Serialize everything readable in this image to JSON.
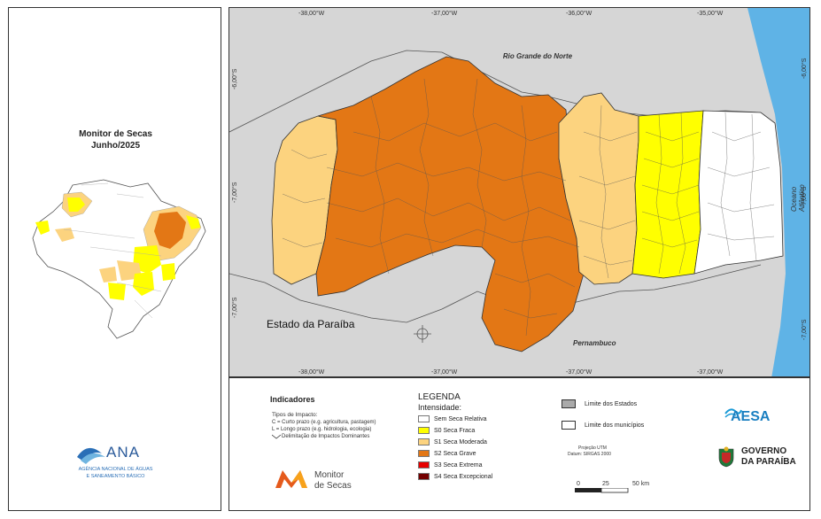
{
  "inset": {
    "title": "Monitor de Secas",
    "subtitle": "Junho/2025"
  },
  "ana": {
    "name": "ANA",
    "line1": "AGÊNCIA NACIONAL DE ÁGUAS",
    "line2": "E SANEAMENTO BÁSICO"
  },
  "map": {
    "state_name": "Estado da Paraíba",
    "neighbors": {
      "north": "Rio Grande do Norte",
      "south": "Pernambuco",
      "ocean": "Oceano Atlântico"
    },
    "top_coords": [
      "-38,00°W",
      "-37,00°W",
      "-36,00°W",
      "-35,00°W"
    ],
    "bottom_coords": [
      "-38,00°W",
      "-37,00°W",
      "-37,00°W",
      "-37,00°W"
    ],
    "left_coords": [
      "-6,00°S",
      "-7,00°S",
      "-7,00°S"
    ],
    "right_coords": [
      "-6,00°S",
      "-7,00°S",
      "-7,00°S"
    ]
  },
  "indicators": {
    "title": "Indicadores",
    "impact_title": "Tipos de Impacto:",
    "short": "C = Curto prazo (e.g. agricultura, pastagem)",
    "long": "L = Longo prazo (e.g. hidrologia, ecologia)",
    "delim": "Delimitação de Impactos Dominantes"
  },
  "legend": {
    "title": "LEGENDA",
    "subtitle": "Intensidade:",
    "items": [
      {
        "label": "Sem Seca Relativa",
        "color": "#ffffff"
      },
      {
        "label": "S0 Seca Fraca",
        "color": "#ffff00"
      },
      {
        "label": "S1 Seca Moderada",
        "color": "#fcd37f"
      },
      {
        "label": "S2 Seca Grave",
        "color": "#e37715"
      },
      {
        "label": "S3 Seca Extrema",
        "color": "#e60000"
      },
      {
        "label": "S4 Seca Excepcional",
        "color": "#730000"
      }
    ]
  },
  "limits": {
    "states": "Limite dos Estados",
    "municipalities": "Limite dos municípios"
  },
  "projection": {
    "line1": "Projeção UTM",
    "line2": "Datum: SIRGAS 2000"
  },
  "scale": {
    "labels": [
      "0",
      "25",
      "50 km"
    ]
  },
  "monitor_logo": {
    "line1": "Monitor",
    "line2": "de Secas"
  },
  "aesa": {
    "name": "AESA"
  },
  "governo": {
    "line1": "GOVERNO",
    "line2": "DA PARAÍBA"
  },
  "colors": {
    "s0": "#ffff00",
    "s1": "#fcd37f",
    "s2": "#e37715",
    "ocean": "#5fb3e6",
    "land": "#d6d6d6",
    "border": "#333333"
  }
}
